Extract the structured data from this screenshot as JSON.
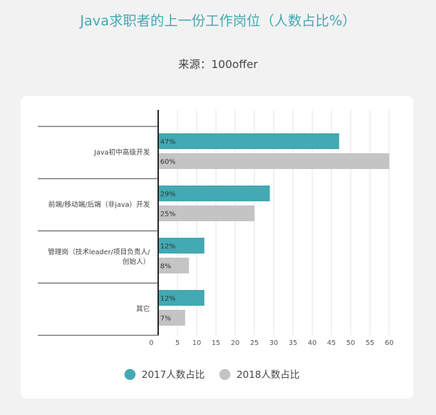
{
  "title": "Java求职者的上一份工作岗位（人数占比%）",
  "source": "来源：100offer",
  "chart_data": {
    "type": "bar",
    "orientation": "horizontal",
    "categories": [
      [
        "Java初中高级开发"
      ],
      [
        "前端/移动端/后端（非java）开发"
      ],
      [
        "管理岗（技术leader/项目负责人/",
        "创始人）"
      ],
      [
        "其它"
      ]
    ],
    "series": [
      {
        "name": "2017人数占比",
        "values": [
          47,
          29,
          12,
          12
        ],
        "labels": [
          "47%",
          "29%",
          "12%",
          "12%"
        ],
        "color": "#43a9b3"
      },
      {
        "name": "2018人数占比",
        "values": [
          60,
          25,
          8,
          7
        ],
        "labels": [
          "60%",
          "25%",
          "8%",
          "7%"
        ],
        "color": "#c4c4c4"
      }
    ],
    "xticks": [
      0,
      5,
      10,
      15,
      20,
      25,
      30,
      35,
      40,
      45,
      50,
      55,
      60
    ],
    "xlim": [
      0,
      60
    ],
    "grid": true,
    "legend_position": "bottom"
  }
}
